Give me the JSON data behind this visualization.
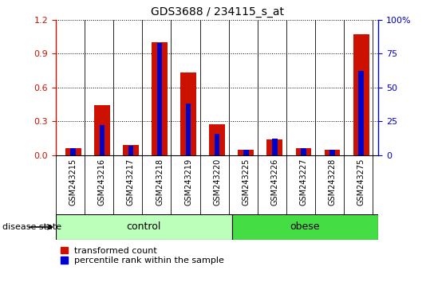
{
  "title": "GDS3688 / 234115_s_at",
  "samples": [
    "GSM243215",
    "GSM243216",
    "GSM243217",
    "GSM243218",
    "GSM243219",
    "GSM243220",
    "GSM243225",
    "GSM243226",
    "GSM243227",
    "GSM243228",
    "GSM243275"
  ],
  "transformed_count": [
    0.06,
    0.44,
    0.09,
    1.0,
    0.73,
    0.27,
    0.05,
    0.14,
    0.06,
    0.05,
    1.07
  ],
  "percentile_rank_pct": [
    5,
    22,
    7,
    83,
    38,
    16,
    4,
    12,
    5,
    4,
    62
  ],
  "groups": [
    {
      "label": "control",
      "start": 0,
      "end": 6,
      "color": "#bbffbb"
    },
    {
      "label": "obese",
      "start": 6,
      "end": 11,
      "color": "#44dd44"
    }
  ],
  "ylim_left": [
    0,
    1.2
  ],
  "ylim_right": [
    0,
    100
  ],
  "yticks_left": [
    0,
    0.3,
    0.6,
    0.9,
    1.2
  ],
  "yticks_right": [
    0,
    25,
    50,
    75,
    100
  ],
  "bar_color_red": "#cc1100",
  "bar_color_blue": "#0000cc",
  "bar_width": 0.55,
  "blue_bar_width": 0.18,
  "left_axis_color": "#cc1100",
  "right_axis_color": "#0000cc",
  "disease_state_label": "disease state",
  "legend_red_label": "transformed count",
  "legend_blue_label": "percentile rank within the sample",
  "plot_bg": "#ffffff",
  "label_area_bg": "#dddddd",
  "figsize": [
    5.39,
    3.54
  ],
  "dpi": 100
}
